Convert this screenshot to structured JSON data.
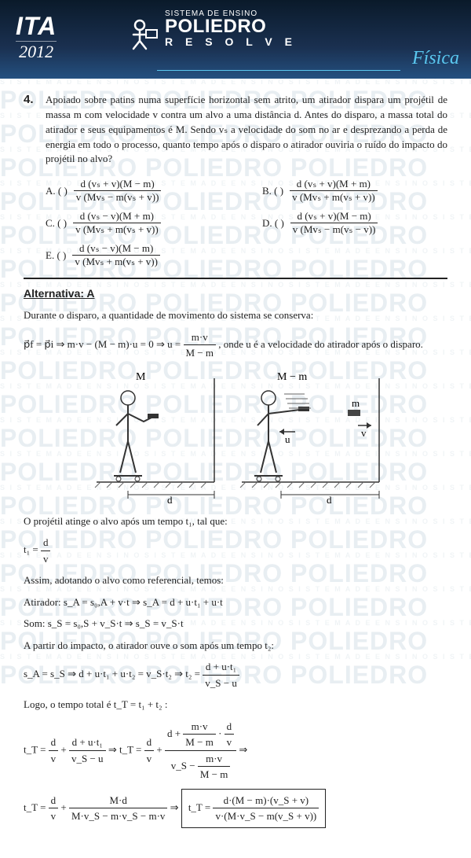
{
  "header": {
    "exam": "ITA",
    "year": "2012",
    "logo_top": "SISTEMA DE ENSINO",
    "logo_main": "POLIEDRO",
    "logo_sub": "R E S O L V E",
    "subject": "Física",
    "bg_gradient_top": "#0a1a2a",
    "bg_gradient_mid": "#1a3050",
    "bg_gradient_bot": "#245080",
    "accent_color": "#5ac8f0"
  },
  "watermark": {
    "big_text": "POLIEDRO POLIEDRO POLIEDRO",
    "small_text": "S I S T E M A   D E   E N S I N O   S I S T E M A   D E   E N S I N O   S I S T E M A   D E   E N S I N O   S I S T E M A   D E   E N S I N O",
    "big_color": "#e8eef2",
    "small_color": "#f0f4f6"
  },
  "question": {
    "number": "4.",
    "text": "Apoiado sobre patins numa superfície horizontal sem atrito, um atirador dispara um projétil de massa m com velocidade v contra um alvo a uma distância d. Antes do disparo, a massa total do atirador e seus equipamentos é M. Sendo vₛ a velocidade do som no ar e desprezando a perda de energia em todo o processo, quanto tempo após o disparo o atirador ouviria o ruído do impacto do projétil no alvo?",
    "options": {
      "A": {
        "label": "A. (   )",
        "num": "d (vₛ + v)(M − m)",
        "den": "v (Mvₛ − m(vₛ + v))"
      },
      "B": {
        "label": "B. (   )",
        "num": "d (vₛ + v)(M + m)",
        "den": "v (Mvₛ + m(vₛ + v))"
      },
      "C": {
        "label": "C. (   )",
        "num": "d (vₛ − v)(M + m)",
        "den": "v (Mvₛ + m(vₛ + v))"
      },
      "D": {
        "label": "D. (   )",
        "num": "d (vₛ + v)(M − m)",
        "den": "v (Mvₛ − m(vₛ − v))"
      },
      "E": {
        "label": "E. (   )",
        "num": "d (vₛ − v)(M − m)",
        "den": "v (Mvₛ + m(vₛ + v))"
      }
    }
  },
  "answer": {
    "label": "Alternativa: A",
    "lines": {
      "l1": "Durante o disparo, a quantidade de movimento do sistema se conserva:",
      "l2_left": "p⃗f = p⃗i   ⇒   m·v − (M − m)·u = 0   ⇒   u =",
      "l2_num": "m·v",
      "l2_den": "M − m",
      "l2_right": ", onde u é a velocidade do atirador após o disparo.",
      "l3": "O projétil atinge o alvo após um tempo t₁, tal que:",
      "l4_lhs": "t₁ =",
      "l4_num": "d",
      "l4_den": "v",
      "l5": "Assim, adotando o alvo como referencial, temos:",
      "l6": "Atirador:  s_A = s₀,A + v·t   ⇒   s_A = d + u·t₁ + u·t",
      "l7": "Som:  s_S = s₀,S + v_S·t   ⇒   s_S = v_S·t",
      "l8": "A partir do impacto, o atirador ouve o som após um tempo t₂:",
      "l9_left": "s_A = s_S   ⇒   d + u·t₁ + u·t₂ = v_S·t₂   ⇒   t₂ =",
      "l9_num": "d + u·t₁",
      "l9_den": "v_S − u",
      "l10": "Logo, o tempo total é  t_T = t₁ + t₂ :",
      "l11a_lhs": "t_T =",
      "l11a_f1n": "d",
      "l11a_f1d": "v",
      "l11a_plus": " + ",
      "l11a_f2n": "d + u·t₁",
      "l11a_f2d": "v_S − u",
      "l11a_arrow": "   ⇒   t_T = ",
      "l11b_f1n": "d",
      "l11b_f1d": "v",
      "l11b_plus": " + ",
      "l11b_bignum_top": "d + ",
      "l11b_inner1n": "m·v",
      "l11b_inner1d": "M − m",
      "l11b_dot": " · ",
      "l11b_inner2n": "d",
      "l11b_inner2d": "v",
      "l11b_bigden_left": "v_S − ",
      "l11b_inner3n": "m·v",
      "l11b_inner3d": "M − m",
      "l11b_arrow2": "   ⇒",
      "l12_lhs": "t_T =",
      "l12_f1n": "d",
      "l12_f1d": "v",
      "l12_plus": " + ",
      "l12_f2n": "M·d",
      "l12_f2d": "M·v_S − m·v_S − m·v",
      "l12_arrow": "   ⇒   ",
      "l12_box_lhs": "t_T = ",
      "l12_box_num": "d·(M − m)·(v_S + v)",
      "l12_box_den": "v·(M·v_S − m(v_S + v))"
    }
  },
  "diagram": {
    "label_M": "M",
    "label_Mm": "M − m",
    "label_m": "m",
    "label_u": "u",
    "label_v": "v",
    "label_d": "d",
    "figure_color": "#333333",
    "wall_color": "#666666",
    "width": 165,
    "height": 170
  }
}
